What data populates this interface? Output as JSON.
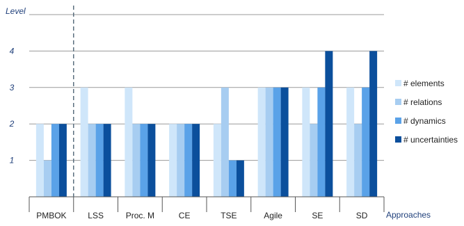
{
  "chart_data": {
    "type": "bar",
    "ylabel": "Level",
    "xlabel": "Approaches",
    "ylim": [
      0,
      5
    ],
    "yticks": [
      "1",
      "2",
      "3",
      "4"
    ],
    "grid": true,
    "separator_after_category": "PMBOK",
    "legend_position": "right",
    "categories": [
      "PMBOK",
      "LSS",
      "Proc. M",
      "CE",
      "TSE",
      "Agile",
      "SE",
      "SD"
    ],
    "series": [
      {
        "name": "# elements",
        "color": "#cfe6fa",
        "values": [
          2,
          3,
          3,
          2,
          2,
          3,
          3,
          3
        ]
      },
      {
        "name": "# relations",
        "color": "#a7cdf1",
        "values": [
          1,
          2,
          2,
          2,
          3,
          3,
          2,
          2
        ]
      },
      {
        "name": "# dynamics",
        "color": "#5aa2e8",
        "values": [
          2,
          2,
          2,
          2,
          1,
          3,
          3,
          3
        ]
      },
      {
        "name": "# uncertainties",
        "color": "#0b4f9c",
        "values": [
          2,
          2,
          2,
          2,
          1,
          3,
          4,
          4
        ]
      }
    ]
  }
}
